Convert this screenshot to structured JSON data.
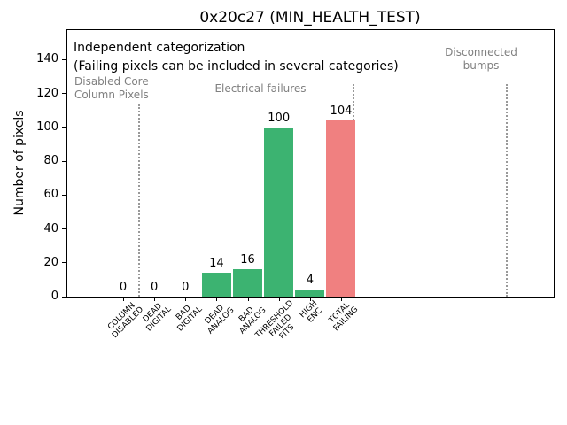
{
  "chart_data": {
    "type": "bar",
    "title": "0x20c27 (MIN_HEALTH_TEST)",
    "xlabel": "",
    "ylabel": "Number of pixels",
    "ylim": [
      0,
      157.5
    ],
    "yticks": [
      0,
      20,
      40,
      60,
      80,
      100,
      120,
      140
    ],
    "grid": false,
    "legend": "none",
    "categories": [
      "COLUMN\nDISABLED",
      "DEAD\nDIGITAL",
      "BAD\nDIGITAL",
      "DEAD\nANALOG",
      "BAD\nANALOG",
      "THRESHOLD\nFAILED\nFITS",
      "HIGH\nENC",
      "TOTAL\nFAILING"
    ],
    "values": [
      0,
      0,
      0,
      14,
      16,
      100,
      4,
      104
    ],
    "bar_value_labels": [
      "0",
      "0",
      "0",
      "14",
      "16",
      "100",
      "4",
      "104"
    ],
    "bar_colors": [
      "#3cb371",
      "#3cb371",
      "#3cb371",
      "#3cb371",
      "#3cb371",
      "#3cb371",
      "#3cb371",
      "#f08080"
    ],
    "colors": {
      "bar_green": "#3cb371",
      "bar_red": "#f08080",
      "section_label_gray": "#808080",
      "separator_gray": "#999999",
      "axis_black": "#000000"
    },
    "annotations": [
      {
        "id": "independent-categorization",
        "text": "Independent categorization",
        "color": "#000000"
      },
      {
        "id": "failing-note",
        "text": "(Failing pixels can be included in several categories)",
        "color": "#000000"
      },
      {
        "id": "section-disabled-core-column-pixels",
        "text": "Disabled Core\nColumn Pixels",
        "color": "#808080"
      },
      {
        "id": "section-electrical-failures",
        "text": "Electrical failures",
        "color": "#808080"
      },
      {
        "id": "section-disconnected-bumps",
        "text": "Disconnected\nbumps",
        "color": "#808080"
      }
    ],
    "separators": {
      "style": "dotted",
      "color": "#999999",
      "positions_category_x": [
        0.5,
        7.4,
        12.32
      ]
    }
  }
}
